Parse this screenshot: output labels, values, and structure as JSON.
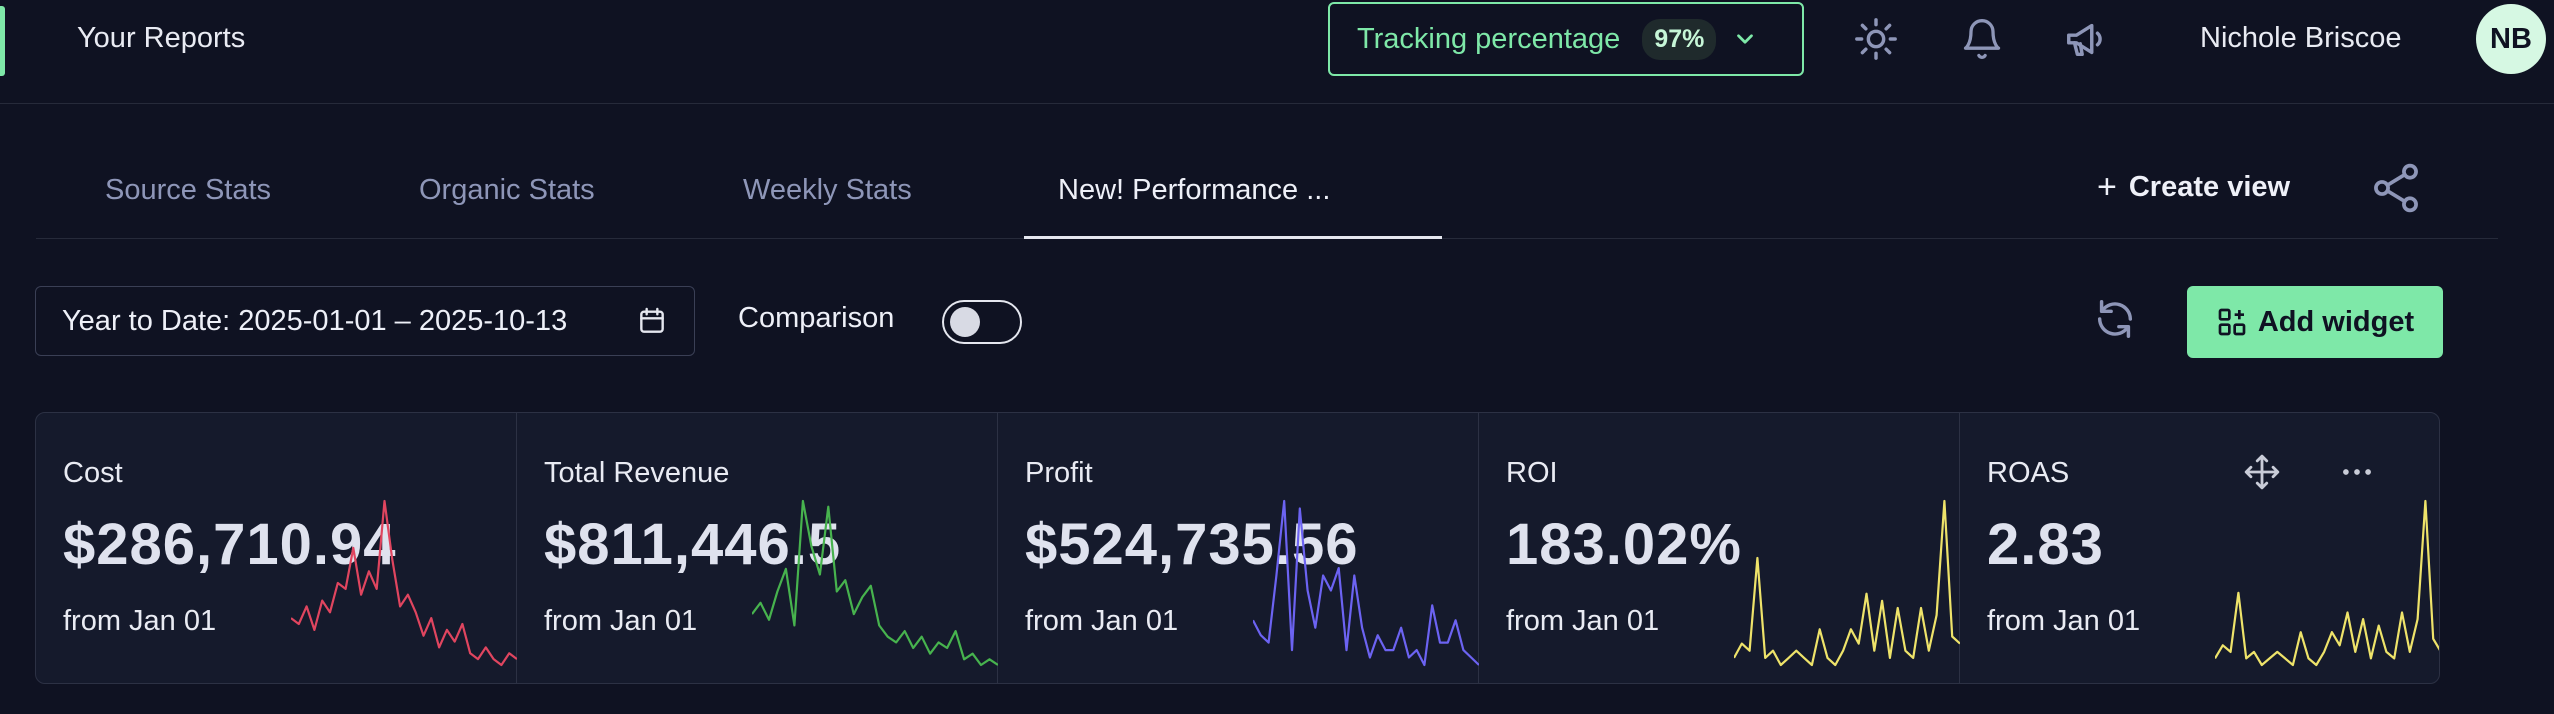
{
  "header": {
    "title": "Your Reports",
    "tracking": {
      "label": "Tracking percentage",
      "value": "97%"
    },
    "user": {
      "name": "Nichole Briscoe",
      "initials": "NB"
    }
  },
  "tabs": [
    {
      "label": "Source Stats",
      "active": false
    },
    {
      "label": "Organic Stats",
      "active": false
    },
    {
      "label": "Weekly Stats",
      "active": false
    },
    {
      "label": "New! Performance ...",
      "active": true
    }
  ],
  "actions": {
    "create_view": "Create view",
    "add_widget": "Add widget"
  },
  "filters": {
    "date_range": "Year to Date: 2025-01-01 – 2025-10-13",
    "comparison_label": "Comparison",
    "comparison_on": false
  },
  "colors": {
    "accent": "#7ee8a8",
    "background": "#0f1222",
    "cost": "#e0455f",
    "revenue": "#47b34e",
    "profit": "#6c63f2",
    "roi": "#eee36a",
    "roas": "#eee36a"
  },
  "metrics": [
    {
      "title": "Cost",
      "value": "$286,710.94",
      "sub": "from Jan 01",
      "color": "#e0455f",
      "trend": [
        8,
        7,
        10,
        6,
        11,
        9,
        14,
        13,
        20,
        12,
        16,
        13,
        28,
        18,
        10,
        12,
        9,
        5,
        8,
        3,
        6,
        4,
        7,
        2,
        1,
        3,
        1,
        0,
        2,
        1
      ]
    },
    {
      "title": "Total Revenue",
      "value": "$811,446.5",
      "sub": "from Jan 01",
      "color": "#47b34e",
      "trend": [
        10,
        12,
        9,
        14,
        18,
        8,
        30,
        22,
        17,
        29,
        14,
        16,
        10,
        13,
        15,
        8,
        6,
        5,
        7,
        4,
        6,
        3,
        5,
        4,
        7,
        2,
        3,
        1,
        2,
        1
      ]
    },
    {
      "title": "Profit",
      "value": "$524,735.56",
      "sub": "from Jan 01",
      "color": "#6c63f2",
      "trend": [
        6,
        4,
        3,
        12,
        22,
        2,
        21,
        10,
        5,
        12,
        10,
        13,
        2,
        12,
        5,
        1,
        4,
        2,
        2,
        5,
        1,
        2,
        0,
        8,
        3,
        3,
        6,
        2,
        1,
        0
      ]
    },
    {
      "title": "ROI",
      "value": "183.02%",
      "sub": "from Jan 01",
      "color": "#eee36a",
      "trend": [
        2,
        4,
        3,
        16,
        2,
        3,
        1,
        2,
        3,
        2,
        1,
        6,
        2,
        1,
        3,
        6,
        4,
        11,
        3,
        10,
        2,
        9,
        3,
        2,
        9,
        3,
        8,
        24,
        5,
        4
      ]
    },
    {
      "title": "ROAS",
      "value": "2.83",
      "sub": "from Jan 01",
      "color": "#eee36a",
      "trend": [
        2,
        4,
        3,
        12,
        2,
        3,
        1,
        2,
        3,
        2,
        1,
        6,
        2,
        1,
        3,
        6,
        4,
        9,
        3,
        8,
        2,
        7,
        3,
        2,
        9,
        3,
        8,
        26,
        5,
        3
      ]
    }
  ]
}
